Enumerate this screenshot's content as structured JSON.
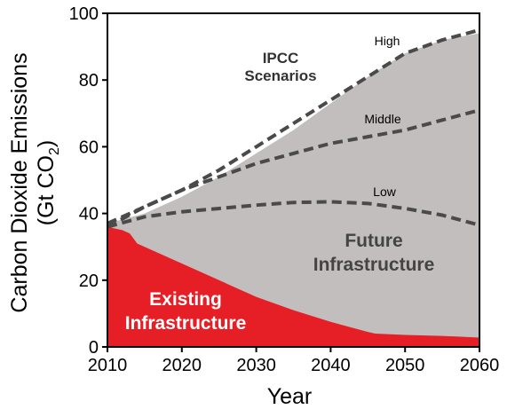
{
  "chart_data": {
    "type": "area",
    "xlabel": "Year",
    "ylabel": {
      "line1": "Carbon Dioxide Emissions",
      "line2_prefix": "(Gt CO",
      "line2_sub": "2",
      "line2_suffix": ")"
    },
    "xlim": [
      2010,
      2060
    ],
    "ylim": [
      0,
      100
    ],
    "x_ticks": [
      "2010",
      "2020",
      "2030",
      "2040",
      "2050",
      "2060"
    ],
    "y_ticks": [
      "0",
      "20",
      "40",
      "60",
      "80",
      "100"
    ],
    "areas": [
      {
        "name": "Future Infrastructure",
        "color": "#c1bebd",
        "x": [
          2010,
          2015,
          2020,
          2025,
          2030,
          2035,
          2040,
          2045,
          2050,
          2055,
          2060
        ],
        "y": [
          37,
          40,
          45,
          51,
          58,
          65,
          73,
          81,
          88,
          92,
          94
        ]
      },
      {
        "name": "Existing Infrastructure",
        "color": "#e61e25",
        "x": [
          2010,
          2012,
          2013,
          2014,
          2016,
          2020,
          2025,
          2030,
          2035,
          2040,
          2045,
          2046,
          2050,
          2055,
          2060
        ],
        "y": [
          36,
          35,
          34,
          31,
          29,
          25,
          20,
          15,
          11,
          7.5,
          4.5,
          4,
          3.6,
          3.3,
          2.8
        ]
      }
    ],
    "scenarios": [
      {
        "name": "High",
        "color": "#4a4a4a",
        "x": [
          2010,
          2015,
          2020,
          2025,
          2030,
          2035,
          2040,
          2045,
          2050,
          2055,
          2060
        ],
        "y": [
          37,
          42,
          47,
          53,
          60,
          67,
          74,
          81,
          88,
          92,
          95
        ]
      },
      {
        "name": "Middle",
        "color": "#4a4a4a",
        "x": [
          2010,
          2015,
          2020,
          2025,
          2030,
          2035,
          2040,
          2045,
          2050,
          2055,
          2060
        ],
        "y": [
          36,
          42,
          47,
          51,
          55,
          58,
          61,
          63,
          65,
          68,
          71
        ]
      },
      {
        "name": "Low",
        "color": "#4a4a4a",
        "x": [
          2010,
          2015,
          2020,
          2025,
          2030,
          2035,
          2040,
          2045,
          2050,
          2055,
          2060
        ],
        "y": [
          36,
          39,
          40.5,
          41.5,
          42.5,
          43.3,
          43.5,
          43,
          41.5,
          39.5,
          36.5
        ]
      }
    ],
    "annotations": {
      "ipcc": [
        "IPCC",
        "Scenarios"
      ],
      "high": "High",
      "middle": "Middle",
      "low": "Low",
      "future": [
        "Future",
        "Infrastructure"
      ],
      "existing": [
        "Existing",
        "Infrastructure"
      ]
    },
    "grid": false,
    "legend": "none"
  }
}
